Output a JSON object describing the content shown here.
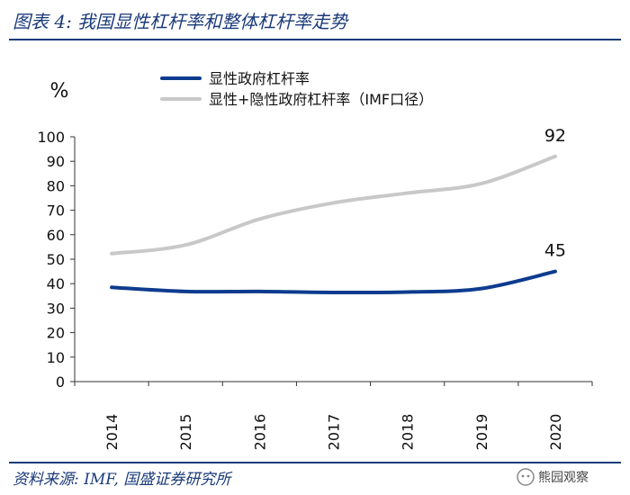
{
  "header": {
    "title": "图表 4:  我国显性杠杆率和整体杠杆率走势"
  },
  "footer": {
    "source": "资料来源: IMF, 国盛证券研究所",
    "watermark": "熊园观察"
  },
  "colors": {
    "brand": "#1a3a7a",
    "explicit": "#0d3b8e",
    "total": "#c8c8c8"
  },
  "chart_data": {
    "type": "line",
    "ylabel": "%",
    "ylim": [
      0,
      100
    ],
    "yticks": [
      0,
      10,
      20,
      30,
      40,
      50,
      60,
      70,
      80,
      90,
      100
    ],
    "categories": [
      "2014",
      "2015",
      "2016",
      "2017",
      "2018",
      "2019",
      "2020"
    ],
    "series": [
      {
        "name": "显性政府杠杆率",
        "values": [
          38.5,
          36.8,
          36.8,
          36.4,
          36.6,
          38.0,
          45
        ],
        "end_label": "45"
      },
      {
        "name": "显性+隐性政府杠杆率（IMF口径）",
        "values": [
          52.3,
          55.8,
          66.4,
          73.0,
          77.0,
          80.9,
          92
        ],
        "end_label": "92"
      }
    ]
  }
}
